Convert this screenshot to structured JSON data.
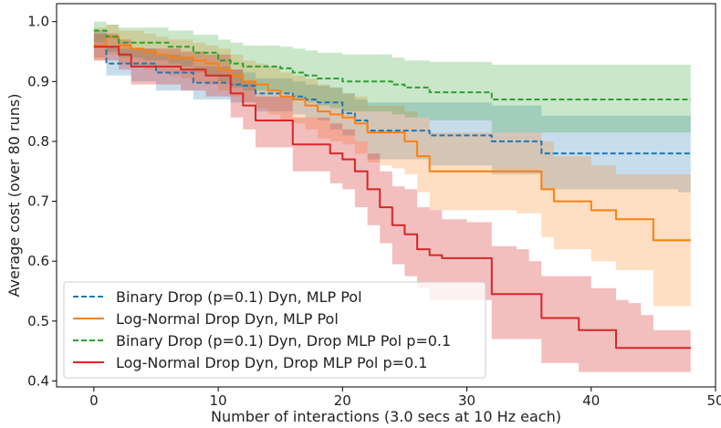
{
  "chart_data": {
    "type": "line",
    "title": "",
    "xlabel": "Number of interactions (3.0 secs at 10 Hz each)",
    "ylabel": "Average cost (over 80 runs)",
    "xlim": [
      -3,
      50
    ],
    "ylim": [
      0.39,
      1.03
    ],
    "xticks": [
      0,
      10,
      20,
      30,
      40,
      50
    ],
    "yticks": [
      0.4,
      0.5,
      0.6,
      0.7,
      0.8,
      0.9,
      1.0
    ],
    "grid": false,
    "legend_position": "lower-left",
    "x": [
      0,
      1,
      2,
      3,
      4,
      5,
      6,
      7,
      8,
      9,
      10,
      11,
      12,
      13,
      14,
      15,
      16,
      17,
      18,
      19,
      20,
      21,
      22,
      23,
      24,
      25,
      26,
      27,
      28,
      29,
      30,
      31,
      32,
      33,
      34,
      35,
      36,
      37,
      38,
      39,
      40,
      41,
      42,
      43,
      44,
      45,
      46,
      47,
      48
    ],
    "series": [
      {
        "name": "Binary Drop (p=0.1) Dyn, MLP Pol",
        "color": "#1f77b4",
        "dash": "dashed",
        "values": [
          0.96,
          0.93,
          0.93,
          0.93,
          0.93,
          0.915,
          0.915,
          0.915,
          0.898,
          0.898,
          0.898,
          0.895,
          0.893,
          0.88,
          0.88,
          0.88,
          0.875,
          0.87,
          0.865,
          0.865,
          0.847,
          0.835,
          0.818,
          0.818,
          0.818,
          0.818,
          0.818,
          0.81,
          0.81,
          0.81,
          0.81,
          0.81,
          0.8,
          0.8,
          0.8,
          0.8,
          0.78,
          0.78,
          0.78,
          0.78,
          0.78,
          0.78,
          0.78,
          0.78,
          0.78,
          0.78,
          0.78,
          0.78,
          0.78
        ],
        "upper": [
          0.985,
          0.96,
          0.955,
          0.955,
          0.955,
          0.945,
          0.945,
          0.94,
          0.925,
          0.925,
          0.925,
          0.92,
          0.915,
          0.905,
          0.905,
          0.905,
          0.9,
          0.895,
          0.893,
          0.89,
          0.88,
          0.87,
          0.865,
          0.865,
          0.865,
          0.865,
          0.865,
          0.865,
          0.865,
          0.865,
          0.865,
          0.865,
          0.86,
          0.86,
          0.86,
          0.86,
          0.843,
          0.843,
          0.843,
          0.843,
          0.843,
          0.843,
          0.843,
          0.843,
          0.843,
          0.843,
          0.843,
          0.843,
          0.843
        ],
        "lower": [
          0.94,
          0.91,
          0.91,
          0.9,
          0.9,
          0.885,
          0.885,
          0.885,
          0.87,
          0.87,
          0.87,
          0.865,
          0.865,
          0.85,
          0.85,
          0.85,
          0.845,
          0.84,
          0.835,
          0.82,
          0.81,
          0.8,
          0.77,
          0.77,
          0.77,
          0.77,
          0.77,
          0.76,
          0.76,
          0.76,
          0.76,
          0.76,
          0.745,
          0.745,
          0.745,
          0.745,
          0.72,
          0.72,
          0.72,
          0.72,
          0.72,
          0.72,
          0.72,
          0.72,
          0.72,
          0.72,
          0.72,
          0.715,
          0.715
        ]
      },
      {
        "name": "Log-Normal Drop Dyn, MLP Pol",
        "color": "#ff7f0e",
        "dash": "solid",
        "values": [
          0.96,
          0.975,
          0.96,
          0.955,
          0.95,
          0.945,
          0.94,
          0.94,
          0.935,
          0.93,
          0.92,
          0.91,
          0.9,
          0.895,
          0.885,
          0.875,
          0.87,
          0.86,
          0.85,
          0.845,
          0.84,
          0.83,
          0.815,
          0.815,
          0.815,
          0.8,
          0.775,
          0.75,
          0.75,
          0.75,
          0.75,
          0.75,
          0.75,
          0.75,
          0.75,
          0.75,
          0.72,
          0.7,
          0.7,
          0.7,
          0.685,
          0.685,
          0.67,
          0.67,
          0.67,
          0.635,
          0.635,
          0.635,
          0.635
        ],
        "upper": [
          0.99,
          0.995,
          0.985,
          0.985,
          0.98,
          0.975,
          0.97,
          0.97,
          0.965,
          0.96,
          0.955,
          0.945,
          0.935,
          0.93,
          0.925,
          0.915,
          0.91,
          0.905,
          0.895,
          0.89,
          0.88,
          0.875,
          0.86,
          0.86,
          0.86,
          0.85,
          0.84,
          0.815,
          0.815,
          0.815,
          0.815,
          0.815,
          0.815,
          0.815,
          0.815,
          0.815,
          0.8,
          0.775,
          0.775,
          0.775,
          0.76,
          0.76,
          0.745,
          0.745,
          0.745,
          0.745,
          0.745,
          0.745,
          0.745
        ],
        "lower": [
          0.935,
          0.945,
          0.93,
          0.925,
          0.92,
          0.915,
          0.91,
          0.905,
          0.9,
          0.895,
          0.885,
          0.875,
          0.865,
          0.855,
          0.845,
          0.835,
          0.83,
          0.82,
          0.805,
          0.8,
          0.795,
          0.78,
          0.765,
          0.76,
          0.755,
          0.745,
          0.715,
          0.685,
          0.685,
          0.685,
          0.685,
          0.685,
          0.685,
          0.685,
          0.68,
          0.68,
          0.64,
          0.62,
          0.62,
          0.62,
          0.6,
          0.6,
          0.585,
          0.585,
          0.585,
          0.525,
          0.525,
          0.525,
          0.525
        ]
      },
      {
        "name": "Binary Drop (p=0.1) Dyn, Drop MLP Pol p=0.1",
        "color": "#2ca02c",
        "dash": "dashed",
        "values": [
          0.985,
          0.975,
          0.965,
          0.965,
          0.965,
          0.965,
          0.958,
          0.958,
          0.948,
          0.948,
          0.935,
          0.93,
          0.925,
          0.925,
          0.925,
          0.922,
          0.915,
          0.91,
          0.905,
          0.905,
          0.9,
          0.9,
          0.9,
          0.9,
          0.895,
          0.89,
          0.89,
          0.882,
          0.882,
          0.882,
          0.882,
          0.882,
          0.87,
          0.87,
          0.87,
          0.87,
          0.87,
          0.87,
          0.87,
          0.87,
          0.87,
          0.87,
          0.87,
          0.87,
          0.87,
          0.87,
          0.87,
          0.87,
          0.87
        ],
        "upper": [
          1.0,
          0.995,
          0.99,
          0.99,
          0.99,
          0.99,
          0.985,
          0.985,
          0.978,
          0.978,
          0.97,
          0.965,
          0.96,
          0.96,
          0.96,
          0.958,
          0.955,
          0.952,
          0.948,
          0.948,
          0.945,
          0.945,
          0.945,
          0.945,
          0.94,
          0.935,
          0.935,
          0.933,
          0.933,
          0.933,
          0.933,
          0.933,
          0.928,
          0.928,
          0.928,
          0.928,
          0.928,
          0.928,
          0.928,
          0.928,
          0.928,
          0.928,
          0.928,
          0.928,
          0.928,
          0.928,
          0.928,
          0.928,
          0.928
        ],
        "lower": [
          0.965,
          0.95,
          0.94,
          0.94,
          0.935,
          0.935,
          0.93,
          0.925,
          0.915,
          0.91,
          0.9,
          0.89,
          0.885,
          0.885,
          0.885,
          0.88,
          0.87,
          0.865,
          0.86,
          0.855,
          0.85,
          0.85,
          0.85,
          0.85,
          0.845,
          0.84,
          0.84,
          0.835,
          0.835,
          0.835,
          0.835,
          0.835,
          0.815,
          0.815,
          0.815,
          0.815,
          0.815,
          0.815,
          0.815,
          0.815,
          0.815,
          0.815,
          0.815,
          0.815,
          0.815,
          0.815,
          0.815,
          0.815,
          0.815
        ]
      },
      {
        "name": "Log-Normal Drop Dyn, Drop MLP Pol p=0.1",
        "color": "#d62728",
        "dash": "solid",
        "values": [
          0.958,
          0.958,
          0.945,
          0.925,
          0.925,
          0.925,
          0.925,
          0.92,
          0.92,
          0.91,
          0.91,
          0.88,
          0.86,
          0.835,
          0.835,
          0.835,
          0.795,
          0.795,
          0.795,
          0.78,
          0.77,
          0.75,
          0.72,
          0.69,
          0.66,
          0.645,
          0.62,
          0.61,
          0.605,
          0.605,
          0.605,
          0.605,
          0.545,
          0.545,
          0.545,
          0.545,
          0.505,
          0.505,
          0.505,
          0.485,
          0.485,
          0.485,
          0.455,
          0.455,
          0.455,
          0.455,
          0.455,
          0.455,
          0.455
        ],
        "upper": [
          0.98,
          0.98,
          0.97,
          0.955,
          0.955,
          0.955,
          0.955,
          0.95,
          0.95,
          0.945,
          0.945,
          0.92,
          0.9,
          0.875,
          0.875,
          0.875,
          0.84,
          0.84,
          0.84,
          0.83,
          0.82,
          0.8,
          0.78,
          0.75,
          0.725,
          0.72,
          0.69,
          0.685,
          0.67,
          0.67,
          0.665,
          0.665,
          0.625,
          0.625,
          0.62,
          0.6,
          0.575,
          0.575,
          0.575,
          0.575,
          0.555,
          0.555,
          0.535,
          0.53,
          0.51,
          0.485,
          0.485,
          0.485,
          0.49
        ],
        "lower": [
          0.935,
          0.935,
          0.92,
          0.895,
          0.895,
          0.895,
          0.895,
          0.885,
          0.885,
          0.875,
          0.875,
          0.84,
          0.82,
          0.79,
          0.79,
          0.79,
          0.75,
          0.75,
          0.75,
          0.73,
          0.72,
          0.69,
          0.66,
          0.63,
          0.595,
          0.575,
          0.555,
          0.535,
          0.535,
          0.535,
          0.535,
          0.535,
          0.47,
          0.47,
          0.47,
          0.47,
          0.43,
          0.43,
          0.43,
          0.415,
          0.415,
          0.415,
          0.415,
          0.415,
          0.415,
          0.415,
          0.415,
          0.415,
          0.415
        ]
      }
    ]
  }
}
